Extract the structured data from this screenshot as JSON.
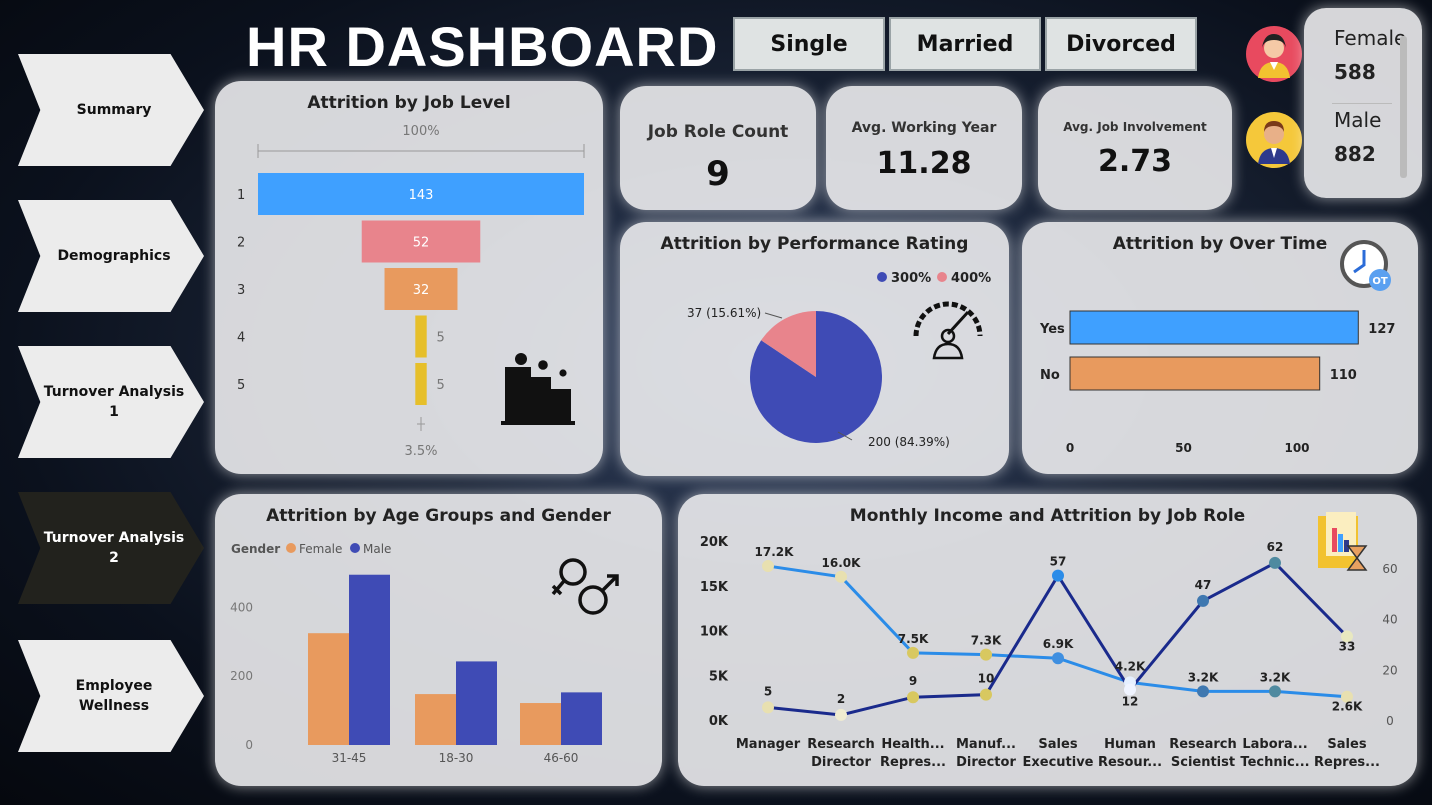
{
  "title": "HR DASHBOARD",
  "nav": [
    {
      "label": "Summary"
    },
    {
      "label": "Demographics"
    },
    {
      "label": "Turnover Analysis 1"
    },
    {
      "label": "Turnover Analysis 2"
    },
    {
      "label": "Employee Wellness"
    }
  ],
  "marital_filters": [
    "Single",
    "Married",
    "Divorced"
  ],
  "gender_counts": {
    "female_label": "Female",
    "female_value": "588",
    "male_label": "Male",
    "male_value": "882"
  },
  "kpis": [
    {
      "label": "Job Role Count",
      "value": "9"
    },
    {
      "label": "Avg. Working Year",
      "value": "11.28"
    },
    {
      "label": "Avg. Job Involvement",
      "value": "2.73"
    }
  ],
  "colors": {
    "blue": "#3fa0ff",
    "pink": "#e8848c",
    "orange": "#e89a5e",
    "yellow": "#e6bf2a",
    "navy": "#3f4bb5",
    "lightblue": "#2b8ce8",
    "darkline": "#1a2a8c"
  },
  "chart_data": [
    {
      "type": "bar",
      "title": "Attrition by Job Level",
      "categories": [
        "1",
        "2",
        "3",
        "4",
        "5"
      ],
      "values": [
        143,
        52,
        32,
        5,
        5
      ],
      "top_label": "100%",
      "bottom_label": "3.5%"
    },
    {
      "type": "pie",
      "title": "Attrition by Performance Rating",
      "legend": [
        "300%",
        "400%"
      ],
      "values": [
        200,
        37
      ],
      "labels": [
        "200 (84.39%)",
        "37 (15.61%)"
      ]
    },
    {
      "type": "bar",
      "title": "Attrition by Over Time",
      "categories": [
        "Yes",
        "No"
      ],
      "values": [
        127,
        110
      ],
      "xlim": [
        0,
        130
      ],
      "xticks": [
        "0",
        "50",
        "100"
      ]
    },
    {
      "type": "bar",
      "title": "Attrition by Age Groups and Gender",
      "legend_title": "Gender",
      "categories": [
        "31-45",
        "18-30",
        "46-60"
      ],
      "series": [
        {
          "name": "Female",
          "values": [
            325,
            148,
            122
          ]
        },
        {
          "name": "Male",
          "values": [
            495,
            243,
            153
          ]
        }
      ],
      "ylim": [
        0,
        500
      ],
      "yticks": [
        "0",
        "200",
        "400"
      ]
    },
    {
      "type": "line",
      "title": "Monthly Income and Attrition by Job Role",
      "categories": [
        "Manager",
        "Research Director",
        "Health... Repres...",
        "Manuf... Director",
        "Sales Executive",
        "Human Resour...",
        "Research Scientist",
        "Labora... Technic...",
        "Sales Repres..."
      ],
      "series": [
        {
          "values": [
            17200,
            16000,
            7500,
            7300,
            6900,
            4200,
            3200,
            3200,
            2600
          ],
          "labels": [
            "17.2K",
            "16.0K",
            "7.5K",
            "7.3K",
            "6.9K",
            "4.2K",
            "3.2K",
            "3.2K",
            "2.6K"
          ]
        },
        {
          "values": [
            5,
            2,
            9,
            10,
            57,
            12,
            47,
            62,
            33
          ],
          "labels": [
            "5",
            "2",
            "9",
            "10",
            "57",
            "12",
            "47",
            "62",
            "33"
          ]
        }
      ],
      "ylim_left": [
        0,
        20000
      ],
      "yticks_left": [
        "0K",
        "5K",
        "10K",
        "15K",
        "20K"
      ],
      "ylim_right": [
        0,
        70
      ],
      "yticks_right": [
        "0",
        "20",
        "40",
        "60"
      ]
    }
  ]
}
